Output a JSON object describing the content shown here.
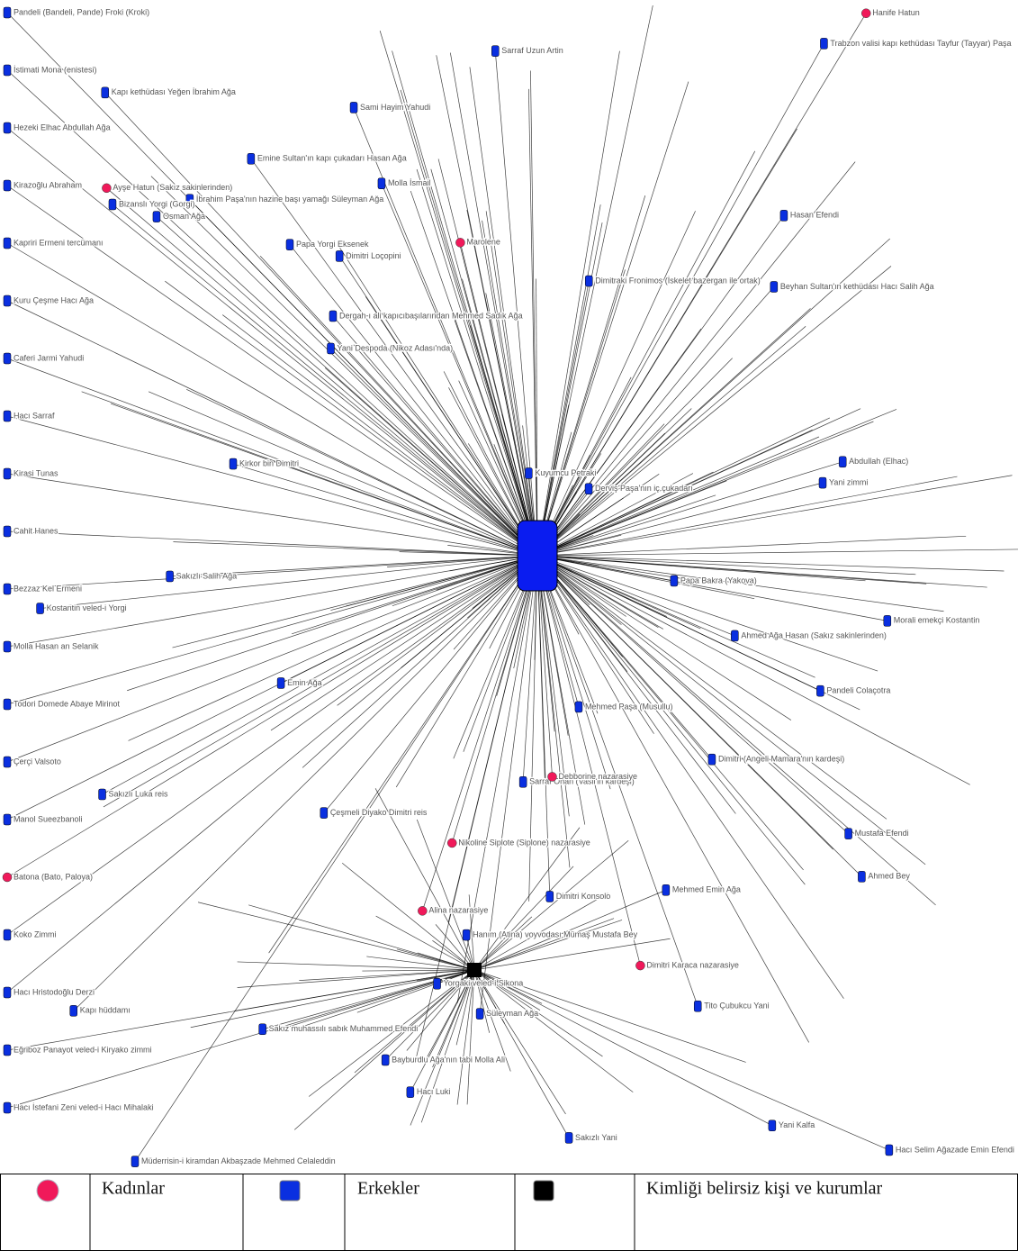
{
  "network": {
    "nodes": [
      {
        "label": "Pandeli (Bandeli, Pande) Froki (Kroki)",
        "group": 1
      },
      {
        "label": "İstimati Mona (enistesi)",
        "group": 1
      },
      {
        "label": "Hezeki Elhac Abdullah Ağa",
        "group": 1
      },
      {
        "label": "Kirazoğlu Abraham",
        "group": 1
      },
      {
        "label": "Kapriri Ermeni tercümanı",
        "group": 1
      },
      {
        "label": "Kuru Çeşme Hacı Ağa",
        "group": 1
      },
      {
        "label": "Caferi Jarmi Yahudi",
        "group": 1
      },
      {
        "label": "Hacı Sarraf",
        "group": 1
      },
      {
        "label": "Kirasi Tunas",
        "group": 1
      },
      {
        "label": "Cahit Hanes",
        "group": 1
      },
      {
        "label": "Bezzaz Kel Ermeni",
        "group": 1
      },
      {
        "label": "Molla Hasan an Selanik",
        "group": 1
      },
      {
        "label": "Todori Domede Abaye Mirinot",
        "group": 1
      },
      {
        "label": "Çerçi Valsoto",
        "group": 1
      },
      {
        "label": "Manol Sueezbanoli",
        "group": 1
      },
      {
        "label": "Batona (Bato, Paloya)",
        "group": 0
      },
      {
        "label": "Koko Zimmi",
        "group": 1
      },
      {
        "label": "Hacı Hristodoğlu Derzi",
        "group": 1
      },
      {
        "label": "Eğriboz Panayot veled-i Kiryako zimmi",
        "group": 1
      },
      {
        "label": "Hacı İstefani Zeni veled-i Hacı Mihalaki",
        "group": 1
      },
      {
        "label": "Hasan Efendi",
        "group": 1
      },
      {
        "label": "Yani Kalfa",
        "group": 1
      },
      {
        "label": "Kapı hüddamı",
        "group": 1
      },
      {
        "label": "Mehmed Paşa (Musullu)",
        "group": 1
      },
      {
        "label": "Abdullah (Elhac)",
        "group": 1
      },
      {
        "label": "Kirkor bin Dimitri",
        "group": 1
      },
      {
        "label": "Tito Çubukcu Yani",
        "group": 1
      },
      {
        "label": "Sakızlı Salih Ağa",
        "group": 1
      },
      {
        "label": "Trabzon valisi kapı kethüdası Tayfur (Tayyar) Paşa",
        "group": 1
      },
      {
        "label": "İbrahim Paşa'nın hazine başı yamağı Süleyman Ağa",
        "group": 1
      },
      {
        "label": "Dergah-ı ali kapıcıbaşılarından Mehmed Sadık Ağa",
        "group": 1
      },
      {
        "label": "Sarraf Ohan (Vasil'in kardeşi)",
        "group": 1
      },
      {
        "label": "Sami Hayim Yahudi",
        "group": 1
      },
      {
        "label": "Bayburdlu Ağa'nın tabi Molla Ali",
        "group": 1
      },
      {
        "label": "Kuyumcu Petraki",
        "group": 1
      },
      {
        "label": "Müderrisin-i kiramdan Akbaşzade Mehmed Celaleddin",
        "group": 1
      },
      {
        "label": "Derviş Paşa'nın iç çukadarı",
        "group": 1
      },
      {
        "label": "Hanife Hatun",
        "group": 0
      },
      {
        "label": "Emine Sultan'ın kapı çukadarı Hasan Ağa",
        "group": 1
      },
      {
        "label": "Sakız muhassılı sabık Muhammed Efendi",
        "group": 1
      },
      {
        "label": "Dimitri (Angeli Mamara'nın kardeşi)",
        "group": 1
      },
      {
        "label": "Beyhan Sultan'ın kethüdası Hacı Salih Ağa",
        "group": 1
      },
      {
        "label": "Dimitraki Fronimos (İskelet bazergan ile ortak)",
        "group": 1
      },
      {
        "label": "Kapı kethüdası Yeğen İbrahim Ağa",
        "group": 1
      },
      {
        "label": "Hanım (Atina) voyvodası Mümaş Mustafa Bey",
        "group": 1
      },
      {
        "label": "Ahmed Ağa Hasan (Sakız sakinlerinden)",
        "group": 1
      },
      {
        "label": "Papa Bakra (Yakova)",
        "group": 1
      },
      {
        "label": "Bizanslı Yorgi (Gorgi)",
        "group": 1
      },
      {
        "label": "Hacı Luki",
        "group": 1
      },
      {
        "label": "Morali emekçi Kostantin",
        "group": 1
      },
      {
        "label": "Pandeli Colaçotra",
        "group": 1
      },
      {
        "label": "Nikoline Siplote (Siplone) nazarasiye",
        "group": 0
      },
      {
        "label": "Dimitri Loçopini",
        "group": 1
      },
      {
        "label": "Marolene",
        "group": 0
      },
      {
        "label": "Sakızlı Luka reis",
        "group": 1
      },
      {
        "label": "Yani zimmi",
        "group": 1
      },
      {
        "label": "Papa Yorgi Eksenek",
        "group": 1
      },
      {
        "label": "Yani Despoda (Nikoz Adası'nda)",
        "group": 1
      },
      {
        "label": "Sakızlı Yani",
        "group": 1
      },
      {
        "label": "Dimitri Konsolo",
        "group": 1
      },
      {
        "label": "Süleyman Ağa",
        "group": 1
      },
      {
        "label": "Emin Ağa",
        "group": 1
      },
      {
        "label": "Mustafa Efendi",
        "group": 1
      },
      {
        "label": "Ahmed Bey",
        "group": 1
      },
      {
        "label": "Osman Ağa",
        "group": 1
      },
      {
        "label": "Dimitri Karaca nazarasiye",
        "group": 0
      },
      {
        "label": "Ayşe Hatun (Sakız sakinlerinden)",
        "group": 0
      },
      {
        "label": "Hacı Selim Ağazade Emin Efendi",
        "group": 1
      },
      {
        "label": "Sarraf Uzun Artin",
        "group": 1
      },
      {
        "label": "Molla İsmail",
        "group": 1
      },
      {
        "label": "Debborine nazarasiye",
        "group": 0
      },
      {
        "label": "Alina nazarasiye",
        "group": 0
      },
      {
        "label": "Yorgaki veled-i Sikona",
        "group": 1
      },
      {
        "label": "Kostantin veled-i Yorgi",
        "group": 1
      },
      {
        "label": "Mehmed Emin Ağa",
        "group": 1
      },
      {
        "label": "Çeşmeli Diyako Dimitri reis",
        "group": 1
      }
    ],
    "legend": [
      {
        "label": "Kadınlar",
        "color": "#f0195a",
        "shape": "circle"
      },
      {
        "label": "Erkekler",
        "color": "#0a2fe0",
        "shape": "square"
      },
      {
        "label": "Kimliği belirsiz kişi ve kurumlar",
        "color": "#000000",
        "shape": "square"
      }
    ]
  }
}
